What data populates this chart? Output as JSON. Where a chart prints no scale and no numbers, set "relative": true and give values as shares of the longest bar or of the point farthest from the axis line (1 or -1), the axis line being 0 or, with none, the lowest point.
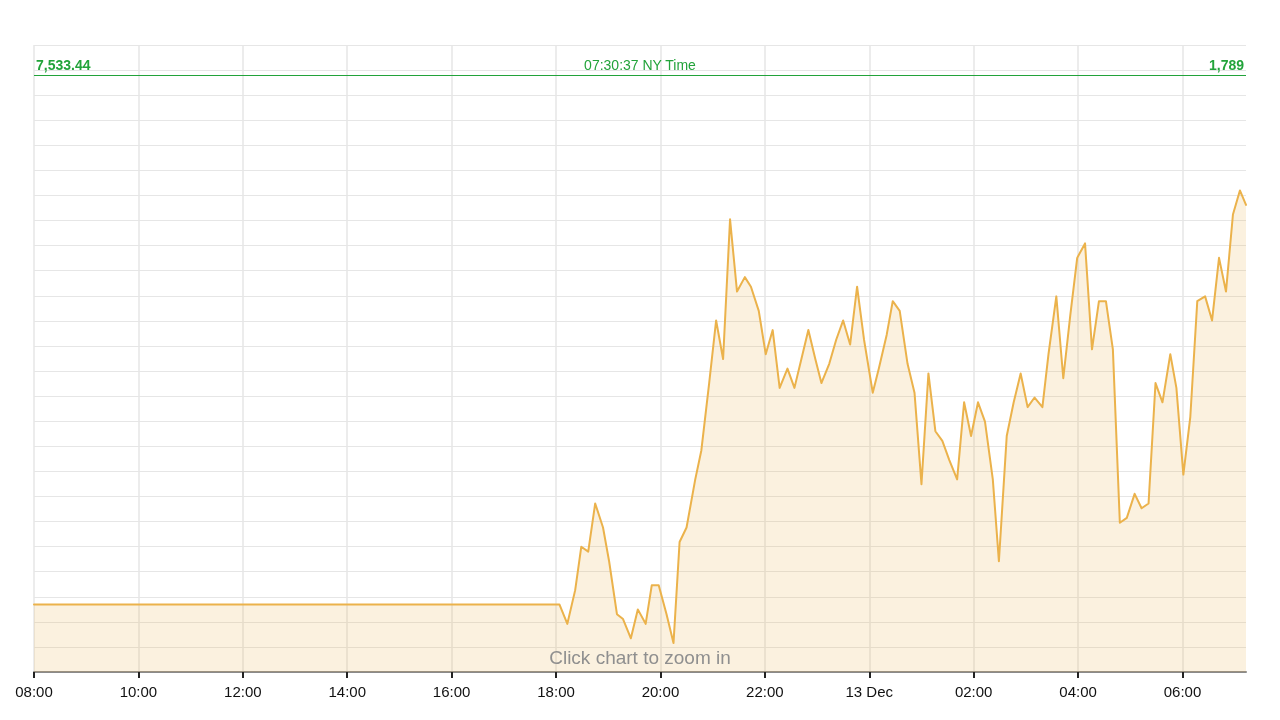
{
  "chart_data": {
    "type": "area",
    "relative": true,
    "x": [
      "--12-12T08:00",
      "--12-12T18:04",
      "--12-12T18:13",
      "--12-12T18:22",
      "--12-12T18:29",
      "--12-12T18:37",
      "--12-12T18:45",
      "--12-12T18:54",
      "--12-12T19:01",
      "--12-12T19:10",
      "--12-12T19:17",
      "--12-12T19:26",
      "--12-12T19:34",
      "--12-12T19:43",
      "--12-12T19:50",
      "--12-12T19:58",
      "--12-12T20:07",
      "--12-12T20:15",
      "--12-12T20:22",
      "--12-12T20:30",
      "--12-12T20:40",
      "--12-12T20:47",
      "--12-12T20:56",
      "--12-12T21:04",
      "--12-12T21:12",
      "--12-12T21:20",
      "--12-12T21:28",
      "--12-12T21:37",
      "--12-12T21:44",
      "--12-12T21:53",
      "--12-12T22:01",
      "--12-12T22:09",
      "--12-12T22:17",
      "--12-12T22:26",
      "--12-12T22:34",
      "--12-12T22:42",
      "--12-12T22:50",
      "--12-12T22:58",
      "--12-12T23:05",
      "--12-12T23:14",
      "--12-12T23:22",
      "--12-12T23:30",
      "--12-12T23:38",
      "--12-12T23:46",
      "--12-12T23:54",
      "--12-13T00:04",
      "--12-13T00:11",
      "--12-13T00:20",
      "--12-13T00:27",
      "--12-13T00:35",
      "--12-13T00:44",
      "--12-13T00:52",
      "--12-13T01:00",
      "--12-13T01:08",
      "--12-13T01:16",
      "--12-13T01:24",
      "--12-13T01:32",
      "--12-13T01:41",
      "--12-13T01:49",
      "--12-13T01:57",
      "--12-13T02:05",
      "--12-13T02:13",
      "--12-13T02:22",
      "--12-13T02:29",
      "--12-13T02:38",
      "--12-13T02:46",
      "--12-13T02:54",
      "--12-13T03:02",
      "--12-13T03:10",
      "--12-13T03:19",
      "--12-13T03:26",
      "--12-13T03:35",
      "--12-13T03:43",
      "--12-13T03:51",
      "--12-13T03:59",
      "--12-13T04:08",
      "--12-13T04:16",
      "--12-13T04:24",
      "--12-13T04:32",
      "--12-13T04:40",
      "--12-13T04:48",
      "--12-13T04:56",
      "--12-13T05:05",
      "--12-13T05:13",
      "--12-13T05:21",
      "--12-13T05:29",
      "--12-13T05:37",
      "--12-13T05:46",
      "--12-13T05:53",
      "--12-13T06:01",
      "--12-13T06:09",
      "--12-13T06:17",
      "--12-13T06:26",
      "--12-13T06:34",
      "--12-13T06:42",
      "--12-13T06:50",
      "--12-13T06:58",
      "--12-13T07:06",
      "--12-13T07:13"
    ],
    "values": [
      0.14,
      0.14,
      0.1,
      0.17,
      0.26,
      0.25,
      0.35,
      0.3,
      0.23,
      0.12,
      0.11,
      0.07,
      0.13,
      0.1,
      0.18,
      0.18,
      0.12,
      0.06,
      0.27,
      0.3,
      0.4,
      0.46,
      0.6,
      0.73,
      0.65,
      0.94,
      0.79,
      0.82,
      0.8,
      0.75,
      0.66,
      0.71,
      0.59,
      0.63,
      0.59,
      0.65,
      0.71,
      0.65,
      0.6,
      0.64,
      0.69,
      0.73,
      0.68,
      0.8,
      0.69,
      0.58,
      0.63,
      0.7,
      0.77,
      0.75,
      0.64,
      0.58,
      0.39,
      0.62,
      0.5,
      0.48,
      0.44,
      0.4,
      0.56,
      0.49,
      0.56,
      0.52,
      0.4,
      0.23,
      0.49,
      0.56,
      0.62,
      0.55,
      0.57,
      0.55,
      0.66,
      0.78,
      0.61,
      0.74,
      0.86,
      0.89,
      0.67,
      0.77,
      0.77,
      0.67,
      0.31,
      0.32,
      0.37,
      0.34,
      0.35,
      0.6,
      0.56,
      0.66,
      0.59,
      0.41,
      0.53,
      0.77,
      0.78,
      0.73,
      0.86,
      0.79,
      0.95,
      1.0,
      0.97
    ],
    "color": "#ebb24b",
    "xlim": [
      "--12-12T08:00",
      "--12-13T07:13"
    ],
    "xticks": [
      {
        "value": "--12-12T08:00",
        "label": "08:00"
      },
      {
        "value": "--12-12T10:00",
        "label": "10:00"
      },
      {
        "value": "--12-12T12:00",
        "label": "12:00"
      },
      {
        "value": "--12-12T14:00",
        "label": "14:00"
      },
      {
        "value": "--12-12T16:00",
        "label": "16:00"
      },
      {
        "value": "--12-12T18:00",
        "label": "18:00"
      },
      {
        "value": "--12-12T20:00",
        "label": "20:00"
      },
      {
        "value": "--12-12T22:00",
        "label": "22:00"
      },
      {
        "value": "--12-13T00:00",
        "label": "13 Dec"
      },
      {
        "value": "--12-13T02:00",
        "label": "02:00"
      },
      {
        "value": "--12-13T04:00",
        "label": "04:00"
      },
      {
        "value": "--12-13T06:00",
        "label": "06:00"
      }
    ],
    "grid": true,
    "ref_lines": [
      {
        "axis": "y",
        "value": 1.24,
        "color": "#22a33a"
      }
    ],
    "annotations": [
      "7,533.44",
      "07:30:37 NY Time",
      "1,789",
      "Click chart to zoom in"
    ]
  }
}
